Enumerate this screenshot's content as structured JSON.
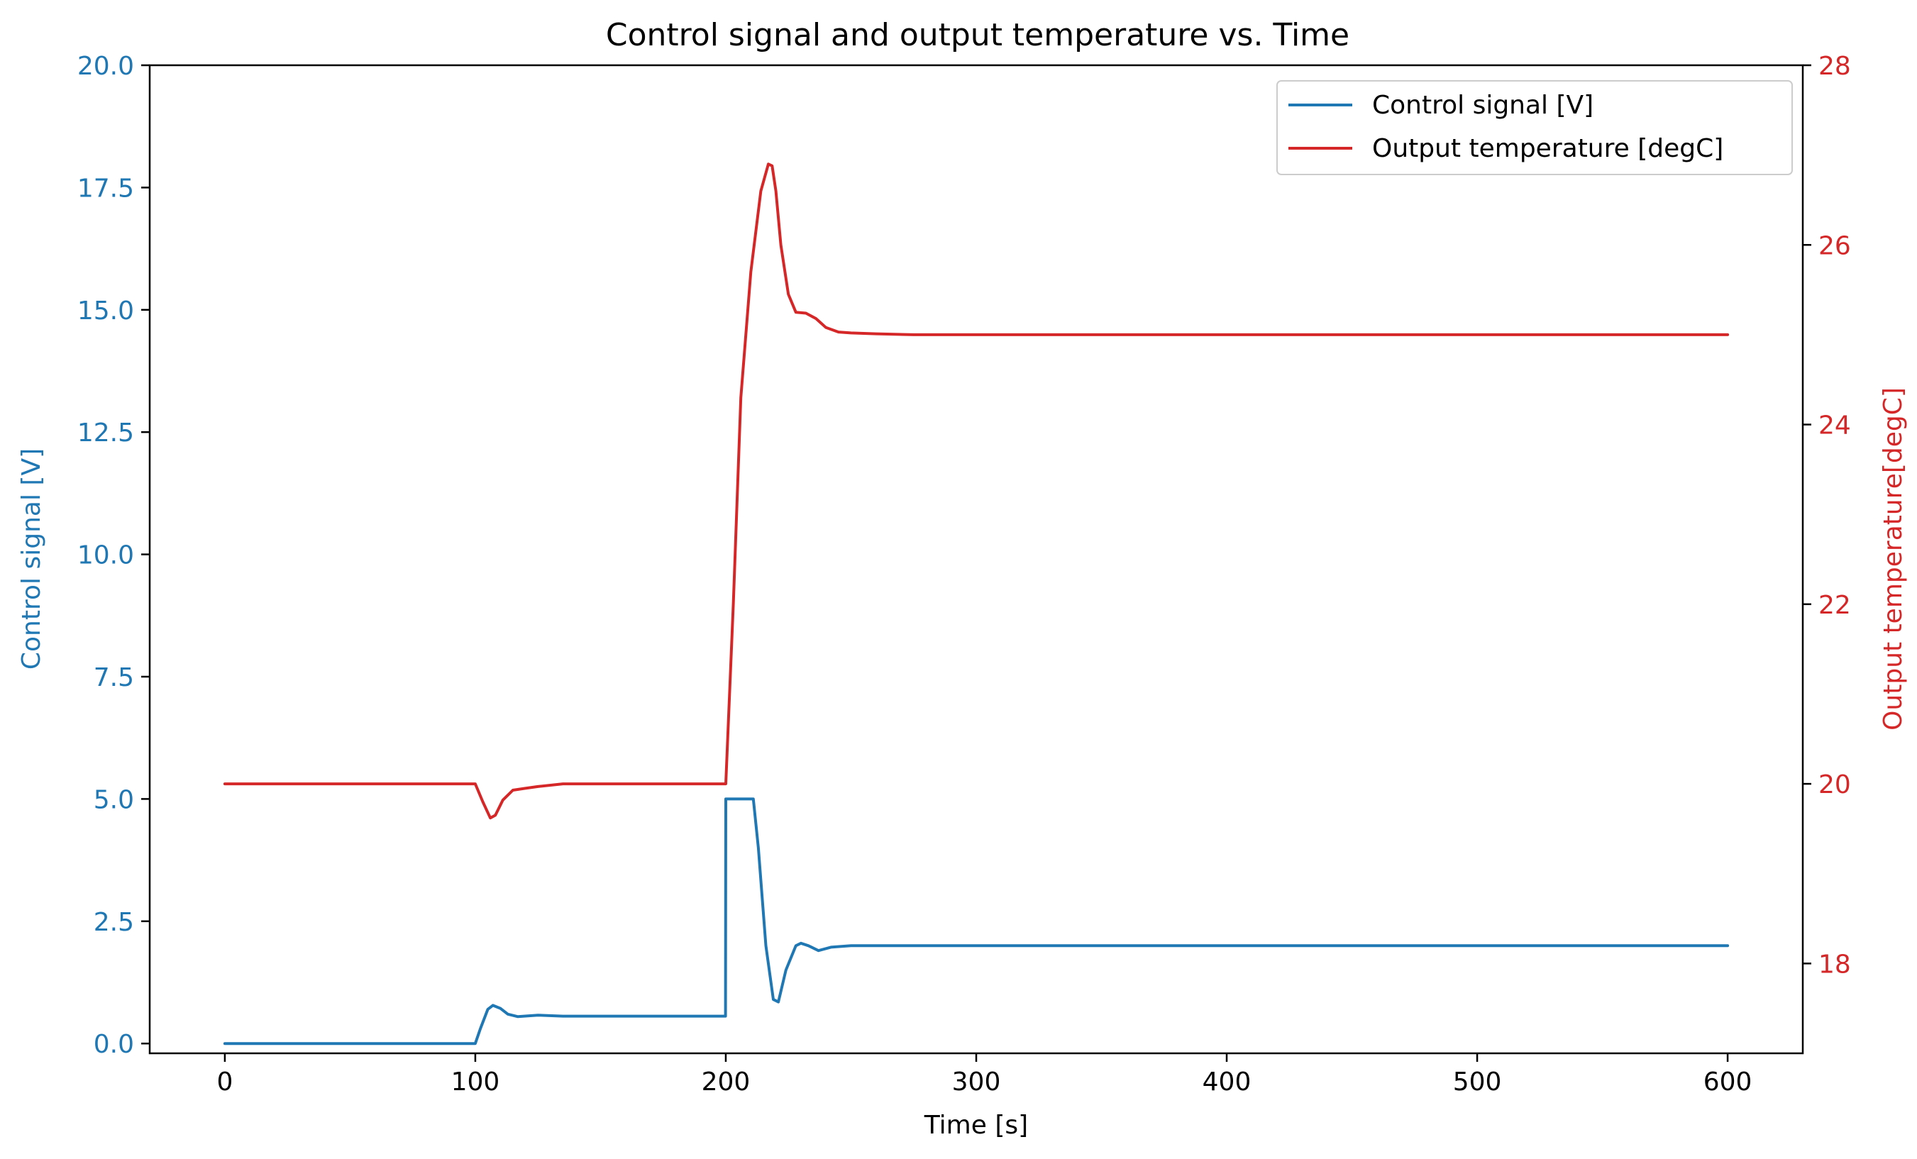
{
  "chart_data": {
    "type": "line",
    "title": "Control signal and output temperature vs. Time",
    "xlabel": "Time [s]",
    "ylabel_left": "Control signal [V]",
    "ylabel_right": "Output temperature[degC]",
    "xlim": [
      -30,
      630
    ],
    "ylim_left": [
      -0.2,
      20.0
    ],
    "ylim_right": [
      17.0,
      28.0
    ],
    "x_ticks": [
      0,
      100,
      200,
      300,
      400,
      500,
      600
    ],
    "x_tick_labels": [
      "0",
      "100",
      "200",
      "300",
      "400",
      "500",
      "600"
    ],
    "y_left_ticks": [
      0.0,
      2.5,
      5.0,
      7.5,
      10.0,
      12.5,
      15.0,
      17.5,
      20.0
    ],
    "y_left_tick_labels": [
      "0.0",
      "2.5",
      "5.0",
      "7.5",
      "10.0",
      "12.5",
      "15.0",
      "17.5",
      "20.0"
    ],
    "y_right_ticks": [
      18,
      20,
      22,
      24,
      26,
      28
    ],
    "y_right_tick_labels": [
      "18",
      "20",
      "22",
      "24",
      "26",
      "28"
    ],
    "grid": false,
    "legend_position": "top-right",
    "colors": {
      "control": "#1f77b4",
      "temperature": "#d62728",
      "axis": "#000000"
    },
    "series": [
      {
        "name": "Control signal [V]",
        "axis": "left",
        "color": "#1f77b4",
        "x": [
          0,
          100,
          102,
          105,
          107,
          110,
          113,
          117,
          125,
          135,
          150,
          199.9,
          200,
          211,
          213,
          216,
          219,
          221,
          224,
          228,
          230,
          233,
          237,
          242,
          250,
          270,
          300,
          400,
          500,
          600
        ],
        "y": [
          0,
          0,
          0.3,
          0.7,
          0.78,
          0.72,
          0.6,
          0.55,
          0.58,
          0.56,
          0.56,
          0.56,
          5.0,
          5.0,
          4.0,
          2.0,
          0.9,
          0.85,
          1.5,
          2.0,
          2.05,
          2.0,
          1.9,
          1.97,
          2.0,
          2.0,
          2.0,
          2.0,
          2.0,
          2.0
        ]
      },
      {
        "name": "Output temperature [degC]",
        "axis": "right",
        "color": "#d62728",
        "x": [
          0,
          100,
          103,
          106,
          108,
          111,
          115,
          120,
          125,
          135,
          150,
          200,
          203,
          206,
          210,
          214,
          217,
          218.5,
          220,
          222,
          225,
          228,
          232,
          236,
          240,
          245,
          250,
          260,
          275,
          300,
          400,
          500,
          600
        ],
        "y": [
          20,
          20,
          19.8,
          19.62,
          19.65,
          19.82,
          19.93,
          19.95,
          19.97,
          20.0,
          20.0,
          20.0,
          22.0,
          24.3,
          25.7,
          26.6,
          26.9,
          26.88,
          26.6,
          26.0,
          25.45,
          25.25,
          25.24,
          25.18,
          25.08,
          25.03,
          25.02,
          25.01,
          25.0,
          25.0,
          25.0,
          25.0,
          25.0
        ]
      }
    ]
  }
}
